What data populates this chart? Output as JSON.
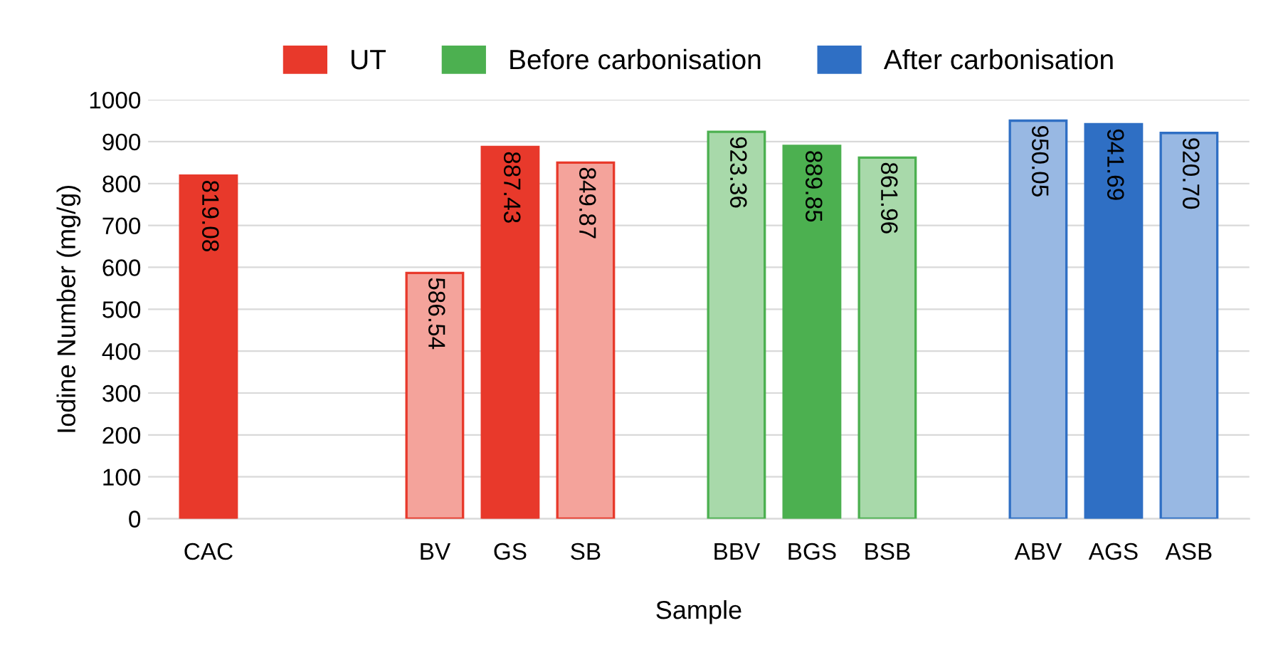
{
  "chart_data": {
    "type": "bar",
    "xlabel": "Sample",
    "ylabel": "Iodine Number (mg/g)",
    "categories": [
      "CAC",
      null,
      null,
      "BV",
      "GS",
      "SB",
      null,
      "BBV",
      "BGS",
      "BSB",
      null,
      "ABV",
      "AGS",
      "ASB"
    ],
    "series": [
      {
        "name": "UT",
        "color": "#e8392b",
        "colors": [
          "#e8392b",
          null,
          null,
          "#f4a39b",
          "#e8392b",
          "#f4a39b",
          null,
          null,
          null,
          null,
          null,
          null,
          null,
          null
        ],
        "values": [
          819.08,
          null,
          null,
          586.54,
          887.43,
          849.87,
          null,
          null,
          null,
          null,
          null,
          null,
          null,
          null
        ],
        "value_labels": [
          "819.08",
          null,
          null,
          "586.54",
          "887.43",
          "849.87",
          null,
          null,
          null,
          null,
          null,
          null,
          null,
          null
        ]
      },
      {
        "name": "Before carbonisation",
        "color": "#4cb050",
        "colors": [
          null,
          null,
          null,
          null,
          null,
          null,
          null,
          "#a8d9aa",
          "#4cb050",
          "#a8d9aa",
          null,
          null,
          null,
          null
        ],
        "values": [
          null,
          null,
          null,
          null,
          null,
          null,
          null,
          923.36,
          889.85,
          861.96,
          null,
          null,
          null,
          null
        ],
        "value_labels": [
          null,
          null,
          null,
          null,
          null,
          null,
          null,
          "923.36",
          "889.85",
          "861.96",
          null,
          null,
          null,
          null
        ]
      },
      {
        "name": "After carbonisation",
        "color": "#2f6fc4",
        "colors": [
          null,
          null,
          null,
          null,
          null,
          null,
          null,
          null,
          null,
          null,
          null,
          "#98b8e3",
          "#2f6fc4",
          "#98b8e3"
        ],
        "values": [
          null,
          null,
          null,
          null,
          null,
          null,
          null,
          null,
          null,
          null,
          null,
          950.05,
          941.69,
          920.7
        ],
        "value_labels": [
          null,
          null,
          null,
          null,
          null,
          null,
          null,
          null,
          null,
          null,
          null,
          "950.05",
          "941.69",
          "920.70"
        ]
      }
    ],
    "ylim": [
      0,
      1000
    ],
    "yticks": [
      0,
      100,
      200,
      300,
      400,
      500,
      600,
      700,
      800,
      900,
      1000
    ],
    "grid": "y",
    "legend": "top"
  }
}
